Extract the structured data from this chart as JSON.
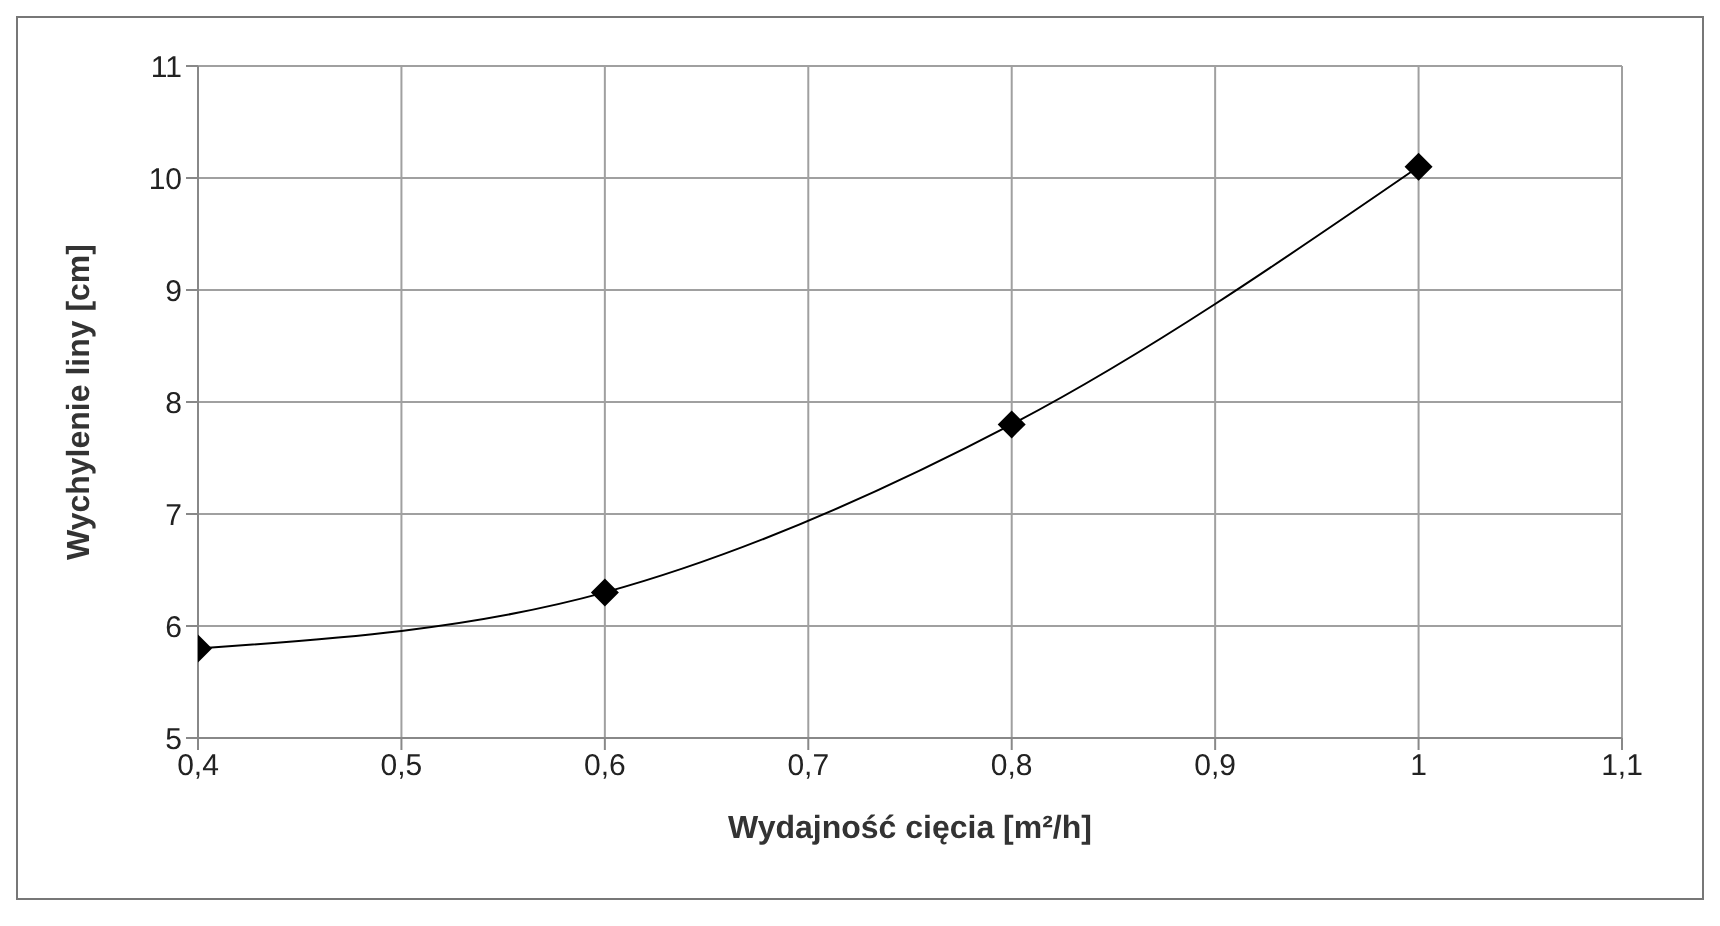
{
  "chart_data": {
    "type": "line",
    "xlabel": "Wydajność cięcia [m²/h]",
    "ylabel": "Wychylenie liny [cm]",
    "x": [
      0.4,
      0.6,
      0.8,
      1.0
    ],
    "series": [
      {
        "color": "#000000",
        "values": [
          5.8,
          6.3,
          7.8,
          10.1
        ]
      }
    ],
    "xlim": [
      0.4,
      1.1
    ],
    "xticks": [
      {
        "value": 0.4,
        "label": "0,4"
      },
      {
        "value": 0.5,
        "label": "0,5"
      },
      {
        "value": 0.6,
        "label": "0,6"
      },
      {
        "value": 0.7,
        "label": "0,7"
      },
      {
        "value": 0.8,
        "label": "0,8"
      },
      {
        "value": 0.9,
        "label": "0,9"
      },
      {
        "value": 1,
        "label": "1"
      },
      {
        "value": 1.1,
        "label": "1,1"
      }
    ],
    "ylim": [
      5,
      11
    ],
    "yticks": [
      5,
      6,
      7,
      8,
      9,
      10,
      11
    ],
    "grid": true,
    "marker": "diamond",
    "line_style": "solid"
  }
}
